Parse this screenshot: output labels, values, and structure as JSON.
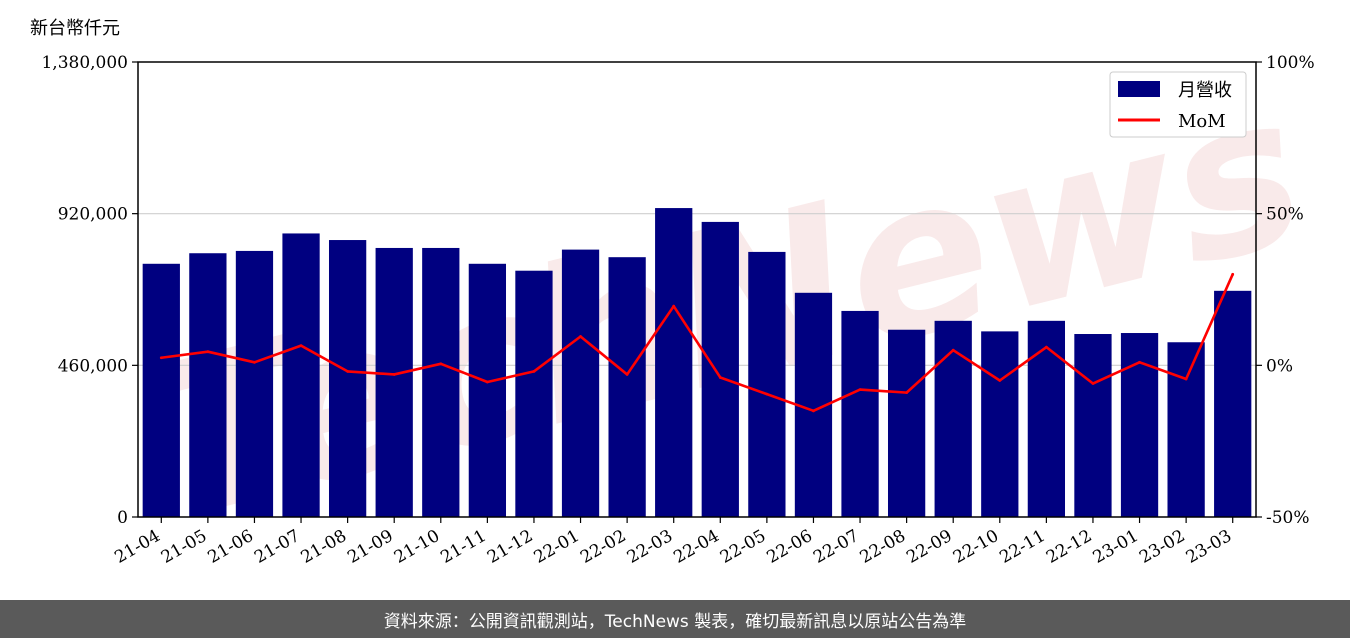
{
  "unit_label": "新台幣仟元",
  "footer": "資料來源：公開資訊觀測站，TechNews 製表，確切最新訊息以原站公告為準",
  "watermark": "TechNews",
  "colors": {
    "bar": "#000080",
    "line": "#ff0000",
    "footer_bg": "#5a5a5a",
    "watermark": "#f5d9d9"
  },
  "chart_data": {
    "type": "bar",
    "categories": [
      "21-04",
      "21-05",
      "21-06",
      "21-07",
      "21-08",
      "21-09",
      "21-10",
      "21-11",
      "21-12",
      "22-01",
      "22-02",
      "22-03",
      "22-04",
      "22-05",
      "22-06",
      "22-07",
      "22-08",
      "22-09",
      "22-10",
      "22-11",
      "22-12",
      "23-01",
      "23-02",
      "23-03"
    ],
    "series": [
      {
        "name": "月營收",
        "axis": "left",
        "type": "bar",
        "values": [
          768000,
          800000,
          807000,
          860000,
          840000,
          816000,
          816000,
          768000,
          747000,
          811000,
          788000,
          937000,
          895000,
          804000,
          680000,
          625000,
          568000,
          595000,
          563000,
          595000,
          555000,
          558000,
          530000,
          686000
        ]
      },
      {
        "name": "MoM",
        "axis": "right",
        "type": "line",
        "values": [
          2.5,
          4.5,
          1.0,
          6.5,
          -2.0,
          -3.0,
          0.5,
          -5.5,
          -2.0,
          9.5,
          -3.0,
          19.5,
          -4.0,
          -9.5,
          -15.0,
          -8.0,
          -9.0,
          5.0,
          -5.0,
          6.0,
          -6.0,
          1.0,
          -4.5,
          30.0
        ]
      }
    ],
    "left_axis": {
      "ylim": [
        0,
        1380000
      ],
      "ticks": [
        "0",
        "460,000",
        "920,000",
        "1,380,000"
      ]
    },
    "right_axis": {
      "ylim": [
        -50,
        100
      ],
      "ticks": [
        "-50%",
        "0%",
        "50%",
        "100%"
      ]
    },
    "legend": {
      "placement": "top-right",
      "items": [
        "月營收",
        "MoM"
      ]
    },
    "grid": "horizontal"
  }
}
